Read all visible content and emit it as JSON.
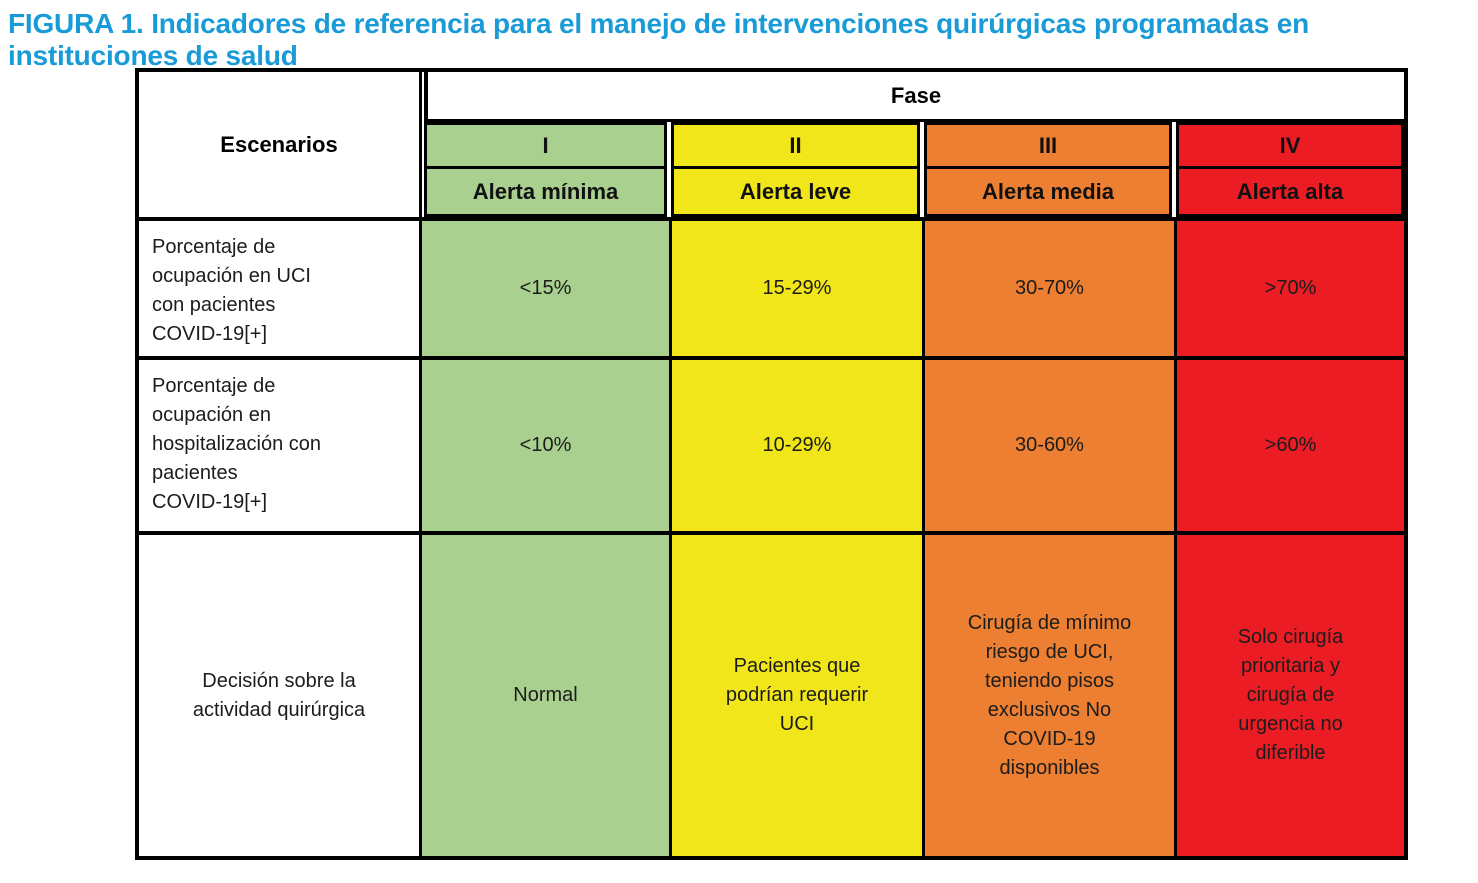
{
  "title": "FIGURA 1. Indicadores de referencia para el manejo de intervenciones quirúrgicas programadas en instituciones de salud",
  "colors": {
    "title": "#199bd7",
    "green": "#a9d08e",
    "yellow": "#f0e619",
    "orange": "#ec7f31",
    "red": "#ec1c24",
    "border": "#000000",
    "cell_text": "#1c1c1c"
  },
  "table": {
    "corner_header": "Escenarios",
    "group_header": "Fase",
    "phases": [
      {
        "numeral": "I",
        "alert": "Alerta mínima"
      },
      {
        "numeral": "II",
        "alert": "Alerta leve"
      },
      {
        "numeral": "III",
        "alert": "Alerta media"
      },
      {
        "numeral": "IV",
        "alert": "Alerta alta"
      }
    ],
    "rows": [
      {
        "label": "Porcentaje de\nocupación en UCI\ncon pacientes\nCOVID-19[+]",
        "values": [
          "<15%",
          "15-29%",
          "30-70%",
          ">70%"
        ]
      },
      {
        "label": "Porcentaje de\nocupación en\nhospitalización con\npacientes\nCOVID-19[+]",
        "values": [
          "<10%",
          "10-29%",
          "30-60%",
          ">60%"
        ]
      },
      {
        "label": "Decisión sobre la\nactividad quirúrgica",
        "values": [
          "Normal",
          "Pacientes que\npodrían requerir\nUCI",
          "Cirugía de mínimo\nriesgo de UCI,\nteniendo pisos\nexclusivos No\nCOVID-19\ndisponibles",
          "Solo cirugía\nprioritaria y\ncirugía de\nurgencia no\ndiferible"
        ]
      }
    ]
  },
  "chart_data": {
    "type": "table",
    "title": "FIGURA 1. Indicadores de referencia para el manejo de intervenciones quirúrgicas programadas en instituciones de salud",
    "columns": [
      "Escenarios",
      "Fase I - Alerta mínima",
      "Fase II - Alerta leve",
      "Fase III - Alerta media",
      "Fase IV - Alerta alta"
    ],
    "rows": [
      [
        "Porcentaje de ocupación en UCI con pacientes COVID-19[+]",
        "<15%",
        "15-29%",
        "30-70%",
        ">70%"
      ],
      [
        "Porcentaje de ocupación en hospitalización con pacientes COVID-19[+]",
        "<10%",
        "10-29%",
        "30-60%",
        ">60%"
      ],
      [
        "Decisión sobre la actividad quirúrgica",
        "Normal",
        "Pacientes que podrían requerir UCI",
        "Cirugía de mínimo riesgo de UCI, teniendo pisos exclusivos No COVID-19 disponibles",
        "Solo cirugía prioritaria y cirugía de urgencia no diferible"
      ]
    ],
    "phase_colors": [
      "#a9d08e",
      "#f0e619",
      "#ec7f31",
      "#ec1c24"
    ]
  }
}
